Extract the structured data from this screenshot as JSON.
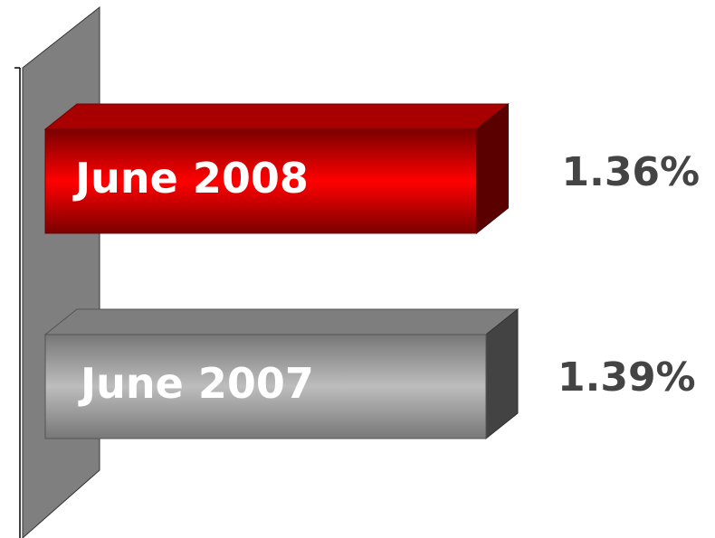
{
  "chart_data": {
    "type": "bar",
    "orientation": "horizontal",
    "categories": [
      "June 2008",
      "June 2007"
    ],
    "values": [
      1.36,
      1.39
    ],
    "value_labels": [
      "1.36%",
      "1.39%"
    ],
    "colors": [
      "#e00000",
      "#a8a8a8"
    ]
  }
}
